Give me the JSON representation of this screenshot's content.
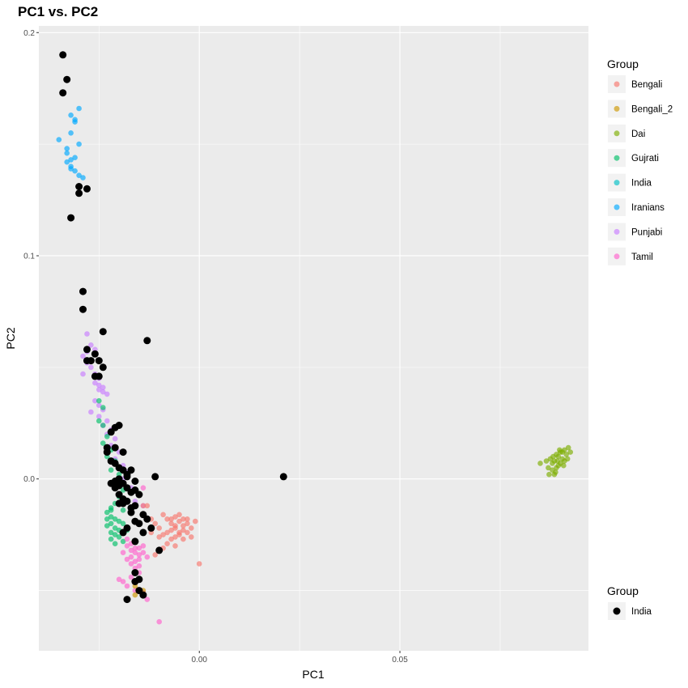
{
  "chart_data": {
    "type": "scatter",
    "title": "PC1 vs. PC2",
    "xlabel": "PC1",
    "ylabel": "PC2",
    "xlim": [
      -0.04,
      0.097
    ],
    "ylim": [
      -0.077,
      0.203
    ],
    "x_ticks": [
      {
        "value": 0.0,
        "label": "0.00"
      },
      {
        "value": 0.05,
        "label": "0.05"
      }
    ],
    "y_ticks": [
      {
        "value": 0.0,
        "label": "0.0"
      },
      {
        "value": 0.1,
        "label": "0.1"
      },
      {
        "value": 0.2,
        "label": "0.2"
      }
    ],
    "grid": true,
    "legends": [
      {
        "title": "Group",
        "placement": "right-top",
        "entries": [
          {
            "name": "Bengali",
            "color": "#F8766D"
          },
          {
            "name": "Bengali_2",
            "color": "#CD9600"
          },
          {
            "name": "Dai",
            "color": "#7CAE00"
          },
          {
            "name": "Gujrati",
            "color": "#00BE67"
          },
          {
            "name": "India",
            "color": "#00BFC4"
          },
          {
            "name": "Iranians",
            "color": "#00A9FF"
          },
          {
            "name": "Punjabi",
            "color": "#C77CFF"
          },
          {
            "name": "Tamil",
            "color": "#FF61CC"
          }
        ]
      },
      {
        "title": "Group",
        "placement": "right-bottom",
        "entries": [
          {
            "name": "India",
            "color": "#000000"
          }
        ]
      }
    ],
    "series": [
      {
        "name": "Iranians",
        "color": "#00A9FF",
        "points": [
          [
            -0.035,
            0.152
          ],
          [
            -0.033,
            0.148
          ],
          [
            -0.032,
            0.155
          ],
          [
            -0.031,
            0.16
          ],
          [
            -0.03,
            0.166
          ],
          [
            -0.032,
            0.163
          ],
          [
            -0.031,
            0.161
          ],
          [
            -0.03,
            0.15
          ],
          [
            -0.033,
            0.142
          ],
          [
            -0.032,
            0.14
          ],
          [
            -0.031,
            0.138
          ],
          [
            -0.029,
            0.135
          ],
          [
            -0.033,
            0.146
          ],
          [
            -0.032,
            0.139
          ],
          [
            -0.031,
            0.144
          ],
          [
            -0.03,
            0.136
          ],
          [
            -0.032,
            0.143
          ]
        ]
      },
      {
        "name": "Dai",
        "color": "#7CAE00",
        "points": [
          [
            0.0885,
            0.008
          ],
          [
            0.089,
            0.011
          ],
          [
            0.09,
            0.012
          ],
          [
            0.0895,
            0.006
          ],
          [
            0.0905,
            0.009
          ],
          [
            0.091,
            0.013
          ],
          [
            0.088,
            0.004
          ],
          [
            0.0875,
            0.009
          ],
          [
            0.087,
            0.005
          ],
          [
            0.0915,
            0.011
          ],
          [
            0.092,
            0.014
          ],
          [
            0.09,
            0.007
          ],
          [
            0.0895,
            0.01
          ],
          [
            0.0885,
            0.002
          ],
          [
            0.089,
            0.005
          ],
          [
            0.091,
            0.008
          ],
          [
            0.0905,
            0.012
          ],
          [
            0.088,
            0.007
          ],
          [
            0.0865,
            0.008
          ],
          [
            0.0872,
            0.002
          ],
          [
            0.0925,
            0.012
          ],
          [
            0.0918,
            0.009
          ],
          [
            0.0898,
            0.013
          ],
          [
            0.0888,
            0.003
          ],
          [
            0.085,
            0.007
          ],
          [
            0.0908,
            0.006
          ],
          [
            0.0893,
            0.008
          ],
          [
            0.0882,
            0.01
          ]
        ]
      },
      {
        "name": "Punjabi",
        "color": "#C77CFF",
        "points": [
          [
            -0.028,
            0.065
          ],
          [
            -0.027,
            0.06
          ],
          [
            -0.026,
            0.058
          ],
          [
            -0.029,
            0.055
          ],
          [
            -0.028,
            0.052
          ],
          [
            -0.027,
            0.05
          ],
          [
            -0.026,
            0.047
          ],
          [
            -0.025,
            0.045
          ],
          [
            -0.026,
            0.043
          ],
          [
            -0.025,
            0.042
          ],
          [
            -0.024,
            0.041
          ],
          [
            -0.025,
            0.04
          ],
          [
            -0.024,
            0.039
          ],
          [
            -0.023,
            0.038
          ],
          [
            -0.026,
            0.035
          ],
          [
            -0.025,
            0.033
          ],
          [
            -0.024,
            0.031
          ],
          [
            -0.027,
            0.03
          ],
          [
            -0.025,
            0.028
          ],
          [
            -0.023,
            0.026
          ],
          [
            -0.024,
            0.024
          ],
          [
            -0.022,
            0.022
          ],
          [
            -0.023,
            0.02
          ],
          [
            -0.021,
            0.018
          ],
          [
            -0.022,
            0.015
          ],
          [
            -0.02,
            0.012
          ],
          [
            -0.021,
            0.009
          ],
          [
            -0.019,
            0.006
          ],
          [
            -0.018,
            0.003
          ],
          [
            -0.019,
            0.0
          ],
          [
            -0.017,
            -0.004
          ],
          [
            -0.016,
            -0.01
          ],
          [
            -0.014,
            -0.012
          ],
          [
            -0.029,
            0.047
          ],
          [
            -0.028,
            0.057
          ]
        ]
      },
      {
        "name": "Gujrati",
        "color": "#00BE67",
        "points": [
          [
            -0.025,
            0.035
          ],
          [
            -0.024,
            0.032
          ],
          [
            -0.025,
            0.026
          ],
          [
            -0.024,
            0.024
          ],
          [
            -0.023,
            0.019
          ],
          [
            -0.024,
            0.016
          ],
          [
            -0.022,
            0.013
          ],
          [
            -0.023,
            0.01
          ],
          [
            -0.021,
            0.008
          ],
          [
            -0.022,
            0.004
          ],
          [
            -0.02,
            0.002
          ],
          [
            -0.021,
            -0.001
          ],
          [
            -0.019,
            -0.005
          ],
          [
            -0.02,
            -0.008
          ],
          [
            -0.021,
            -0.011
          ],
          [
            -0.022,
            -0.014
          ],
          [
            -0.023,
            -0.015
          ],
          [
            -0.022,
            -0.017
          ],
          [
            -0.021,
            -0.018
          ],
          [
            -0.02,
            -0.019
          ],
          [
            -0.022,
            -0.02
          ],
          [
            -0.023,
            -0.021
          ],
          [
            -0.021,
            -0.022
          ],
          [
            -0.02,
            -0.023
          ],
          [
            -0.022,
            -0.024
          ],
          [
            -0.021,
            -0.025
          ],
          [
            -0.02,
            -0.026
          ],
          [
            -0.022,
            -0.027
          ],
          [
            -0.019,
            -0.028
          ],
          [
            -0.021,
            -0.029
          ],
          [
            -0.023,
            -0.018
          ],
          [
            -0.019,
            -0.02
          ],
          [
            -0.018,
            -0.023
          ],
          [
            -0.022,
            -0.013
          ],
          [
            -0.019,
            -0.014
          ]
        ]
      },
      {
        "name": "Bengali",
        "color": "#F8766D",
        "points": [
          [
            -0.008,
            -0.018
          ],
          [
            -0.007,
            -0.02
          ],
          [
            -0.006,
            -0.017
          ],
          [
            -0.005,
            -0.019
          ],
          [
            -0.004,
            -0.021
          ],
          [
            -0.006,
            -0.022
          ],
          [
            -0.007,
            -0.023
          ],
          [
            -0.008,
            -0.024
          ],
          [
            -0.005,
            -0.025
          ],
          [
            -0.004,
            -0.023
          ],
          [
            -0.003,
            -0.02
          ],
          [
            -0.002,
            -0.022
          ],
          [
            -0.006,
            -0.026
          ],
          [
            -0.007,
            -0.027
          ],
          [
            -0.009,
            -0.025
          ],
          [
            -0.01,
            -0.022
          ],
          [
            -0.011,
            -0.02
          ],
          [
            -0.005,
            -0.016
          ],
          [
            -0.009,
            -0.016
          ],
          [
            -0.003,
            -0.018
          ],
          [
            -0.004,
            -0.027
          ],
          [
            -0.008,
            -0.029
          ],
          [
            -0.001,
            -0.019
          ],
          [
            -0.006,
            -0.03
          ],
          [
            -0.01,
            -0.026
          ],
          [
            -0.002,
            -0.026
          ],
          [
            -0.009,
            -0.031
          ],
          [
            -0.007,
            -0.018
          ],
          [
            -0.005,
            -0.024
          ],
          [
            -0.003,
            -0.024
          ],
          [
            0.0,
            -0.038
          ],
          [
            -0.011,
            -0.034
          ],
          [
            -0.012,
            -0.024
          ],
          [
            -0.014,
            -0.012
          ],
          [
            -0.013,
            -0.012
          ],
          [
            -0.006,
            -0.021
          ],
          [
            -0.004,
            -0.018
          ],
          [
            -0.012,
            -0.018
          ]
        ]
      },
      {
        "name": "Tamil",
        "color": "#FF61CC",
        "points": [
          [
            -0.018,
            -0.03
          ],
          [
            -0.017,
            -0.032
          ],
          [
            -0.016,
            -0.028
          ],
          [
            -0.015,
            -0.031
          ],
          [
            -0.016,
            -0.033
          ],
          [
            -0.017,
            -0.035
          ],
          [
            -0.018,
            -0.036
          ],
          [
            -0.015,
            -0.034
          ],
          [
            -0.014,
            -0.033
          ],
          [
            -0.016,
            -0.037
          ],
          [
            -0.017,
            -0.038
          ],
          [
            -0.015,
            -0.036
          ],
          [
            -0.014,
            -0.03
          ],
          [
            -0.019,
            -0.033
          ],
          [
            -0.018,
            -0.027
          ],
          [
            -0.016,
            -0.04
          ],
          [
            -0.015,
            -0.042
          ],
          [
            -0.017,
            -0.044
          ],
          [
            -0.019,
            -0.046
          ],
          [
            -0.02,
            -0.045
          ],
          [
            -0.018,
            -0.048
          ],
          [
            -0.016,
            -0.05
          ],
          [
            -0.014,
            -0.051
          ],
          [
            -0.013,
            -0.054
          ],
          [
            -0.01,
            -0.064
          ],
          [
            -0.014,
            -0.004
          ],
          [
            -0.013,
            -0.035
          ],
          [
            -0.017,
            -0.029
          ],
          [
            -0.016,
            -0.031
          ],
          [
            -0.015,
            -0.039
          ]
        ]
      },
      {
        "name": "Bengali_2",
        "color": "#CD9600",
        "points": [
          [
            -0.016,
            -0.048
          ],
          [
            -0.014,
            -0.05
          ],
          [
            -0.016,
            -0.052
          ]
        ]
      },
      {
        "name": "India",
        "color": "#000000",
        "points": [
          [
            -0.034,
            0.19
          ],
          [
            -0.033,
            0.179
          ],
          [
            -0.034,
            0.173
          ],
          [
            -0.03,
            0.131
          ],
          [
            -0.028,
            0.13
          ],
          [
            -0.03,
            0.128
          ],
          [
            -0.032,
            0.117
          ],
          [
            -0.029,
            0.084
          ],
          [
            -0.029,
            0.076
          ],
          [
            -0.024,
            0.066
          ],
          [
            -0.013,
            0.062
          ],
          [
            -0.028,
            0.058
          ],
          [
            -0.026,
            0.056
          ],
          [
            -0.028,
            0.053
          ],
          [
            -0.027,
            0.053
          ],
          [
            -0.025,
            0.053
          ],
          [
            -0.024,
            0.05
          ],
          [
            -0.025,
            0.046
          ],
          [
            -0.026,
            0.046
          ],
          [
            -0.011,
            0.001
          ],
          [
            -0.022,
            0.021
          ],
          [
            -0.021,
            0.023
          ],
          [
            -0.02,
            0.024
          ],
          [
            -0.023,
            0.014
          ],
          [
            -0.021,
            0.014
          ],
          [
            -0.019,
            0.012
          ],
          [
            -0.021,
            0.007
          ],
          [
            -0.02,
            0.005
          ],
          [
            -0.019,
            0.004
          ],
          [
            -0.017,
            0.004
          ],
          [
            -0.018,
            0.001
          ],
          [
            -0.02,
            0.0
          ],
          [
            -0.019,
            -0.002
          ],
          [
            -0.018,
            -0.004
          ],
          [
            -0.017,
            -0.006
          ],
          [
            -0.021,
            -0.004
          ],
          [
            -0.016,
            -0.005
          ],
          [
            -0.015,
            -0.007
          ],
          [
            -0.02,
            -0.007
          ],
          [
            -0.018,
            -0.01
          ],
          [
            -0.016,
            -0.012
          ],
          [
            -0.019,
            -0.011
          ],
          [
            -0.017,
            -0.015
          ],
          [
            -0.014,
            -0.016
          ],
          [
            -0.013,
            -0.018
          ],
          [
            -0.016,
            -0.019
          ],
          [
            -0.015,
            -0.02
          ],
          [
            -0.018,
            -0.022
          ],
          [
            -0.019,
            -0.024
          ],
          [
            -0.016,
            -0.028
          ],
          [
            -0.012,
            -0.022
          ],
          [
            -0.01,
            -0.032
          ],
          [
            -0.016,
            -0.042
          ],
          [
            -0.015,
            -0.045
          ],
          [
            -0.016,
            -0.046
          ],
          [
            -0.015,
            -0.05
          ],
          [
            -0.014,
            -0.052
          ],
          [
            -0.018,
            -0.054
          ],
          [
            -0.022,
            0.008
          ],
          [
            -0.021,
            -0.001
          ],
          [
            -0.02,
            -0.003
          ],
          [
            -0.019,
            -0.009
          ],
          [
            -0.017,
            -0.013
          ],
          [
            -0.023,
            0.012
          ],
          [
            -0.018,
            0.002
          ],
          [
            -0.016,
            -0.001
          ],
          [
            -0.022,
            -0.002
          ],
          [
            -0.02,
            -0.011
          ],
          [
            -0.014,
            -0.024
          ],
          [
            0.021,
            0.001
          ]
        ]
      }
    ]
  }
}
